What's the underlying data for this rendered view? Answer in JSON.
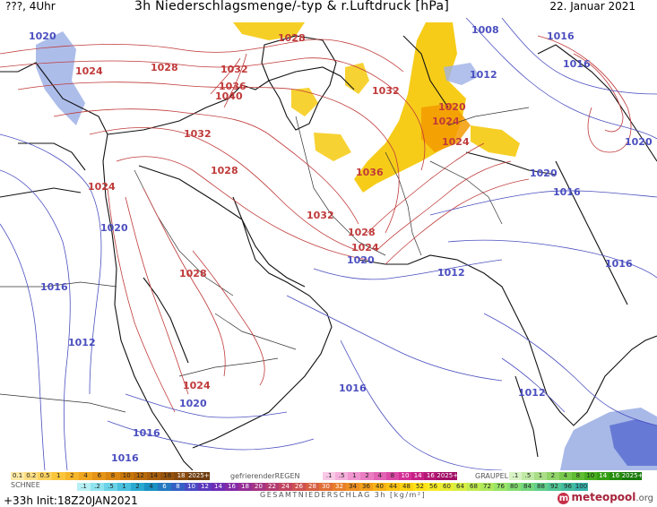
{
  "header": {
    "left": "???, 4Uhr",
    "title": "3h Niederschlagsmenge/-typ & r.Luftdruck [hPa]",
    "date": "22. Januar 2021"
  },
  "map": {
    "colors": {
      "red_isobar": "#c03a3a",
      "blue_isobar": "#4b4fbf",
      "rain_yellow": "#f5c700",
      "snow_blue": "#9fb1e6"
    },
    "isobar_labels": [
      {
        "text": "1020",
        "color": "blue"
      },
      {
        "text": "1028",
        "color": "red"
      },
      {
        "text": "1024",
        "color": "red"
      },
      {
        "text": "1028",
        "color": "red"
      },
      {
        "text": "1032",
        "color": "red"
      },
      {
        "text": "1036",
        "color": "red"
      },
      {
        "text": "1040",
        "color": "red"
      },
      {
        "text": "1032",
        "color": "red"
      },
      {
        "text": "1008",
        "color": "blue"
      },
      {
        "text": "1016",
        "color": "blue"
      },
      {
        "text": "1016",
        "color": "blue"
      },
      {
        "text": "1012",
        "color": "blue"
      },
      {
        "text": "1032",
        "color": "red"
      },
      {
        "text": "1020",
        "color": "red"
      },
      {
        "text": "1024",
        "color": "red"
      },
      {
        "text": "1024",
        "color": "red"
      },
      {
        "text": "1020",
        "color": "blue"
      },
      {
        "text": "1020",
        "color": "blue"
      },
      {
        "text": "1016",
        "color": "blue"
      },
      {
        "text": "1028",
        "color": "red"
      },
      {
        "text": "1036",
        "color": "red"
      },
      {
        "text": "1024",
        "color": "red"
      },
      {
        "text": "1020",
        "color": "blue"
      },
      {
        "text": "1032",
        "color": "red"
      },
      {
        "text": "1028",
        "color": "red"
      },
      {
        "text": "1024",
        "color": "red"
      },
      {
        "text": "1020",
        "color": "blue"
      },
      {
        "text": "1012",
        "color": "blue"
      },
      {
        "text": "1016",
        "color": "blue"
      },
      {
        "text": "1028",
        "color": "red"
      },
      {
        "text": "1016",
        "color": "blue"
      },
      {
        "text": "1012",
        "color": "blue"
      },
      {
        "text": "1024",
        "color": "red"
      },
      {
        "text": "1020",
        "color": "blue"
      },
      {
        "text": "1016",
        "color": "blue"
      },
      {
        "text": "1012",
        "color": "blue"
      },
      {
        "text": "1016",
        "color": "blue"
      },
      {
        "text": "1016",
        "color": "blue"
      }
    ]
  },
  "legend": {
    "snow_title": "SCHNEE",
    "freezing_rain_title": "gefrierenderREGEN",
    "graupel_title": "GRAUPEL",
    "total_title": "GESAMTNIEDERSCHLAG 3h [kg/m²]",
    "snow_scale": [
      "0.1",
      "0.2",
      "0.5",
      "1",
      "2",
      "4",
      "6",
      "8",
      "10",
      "12",
      "14",
      "16",
      "18",
      "2025+"
    ],
    "freezing_scale": [
      ".1",
      ".5",
      "1",
      "2",
      "4",
      "8",
      "10",
      "14",
      "16",
      "2025+"
    ],
    "graupel_scale": [
      ".1",
      ".5",
      "1",
      "2",
      "4",
      "8",
      "10",
      "14",
      "16",
      "2025+"
    ],
    "total_scale": [
      ".1",
      ".2",
      ".5",
      "1",
      "2",
      "4",
      "6",
      "8",
      "10",
      "12",
      "14",
      "16",
      "18",
      "20",
      "22",
      "24",
      "26",
      "28",
      "30",
      "32",
      "34",
      "36",
      "40",
      "44",
      "48",
      "52",
      "56",
      "60",
      "64",
      "68",
      "72",
      "76",
      "80",
      "84",
      "88",
      "92",
      "96",
      "100"
    ]
  },
  "footer": {
    "run_info": "+33h Init:18Z20JAN2021",
    "brand": "meteopool",
    "brand_suffix": ".org",
    "brand_icon": "m"
  }
}
